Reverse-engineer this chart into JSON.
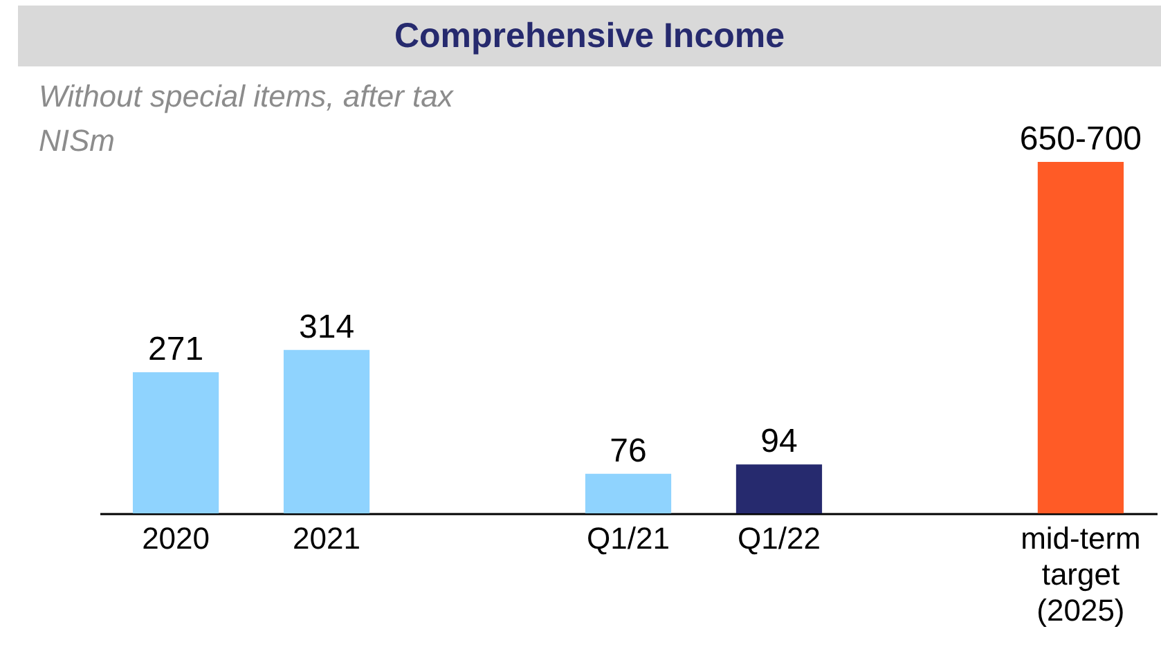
{
  "chart_data": {
    "type": "bar",
    "title": "Comprehensive Income",
    "subtitle": "Without special items, after tax",
    "ylabel": "NISm",
    "categories": [
      "2020",
      "2021",
      null,
      "Q1/21",
      "Q1/22",
      null,
      "mid-term target (2025)"
    ],
    "values": [
      271,
      314,
      null,
      76,
      94,
      null,
      675
    ],
    "value_labels": [
      "271",
      "314",
      null,
      "76",
      "94",
      null,
      "650-700"
    ],
    "colors": [
      "#8fd3fe",
      "#8fd3fe",
      "#8fd3fe",
      "#8fd3fe",
      "#262a6e",
      "#ff5b26",
      "#ff5b26"
    ]
  }
}
